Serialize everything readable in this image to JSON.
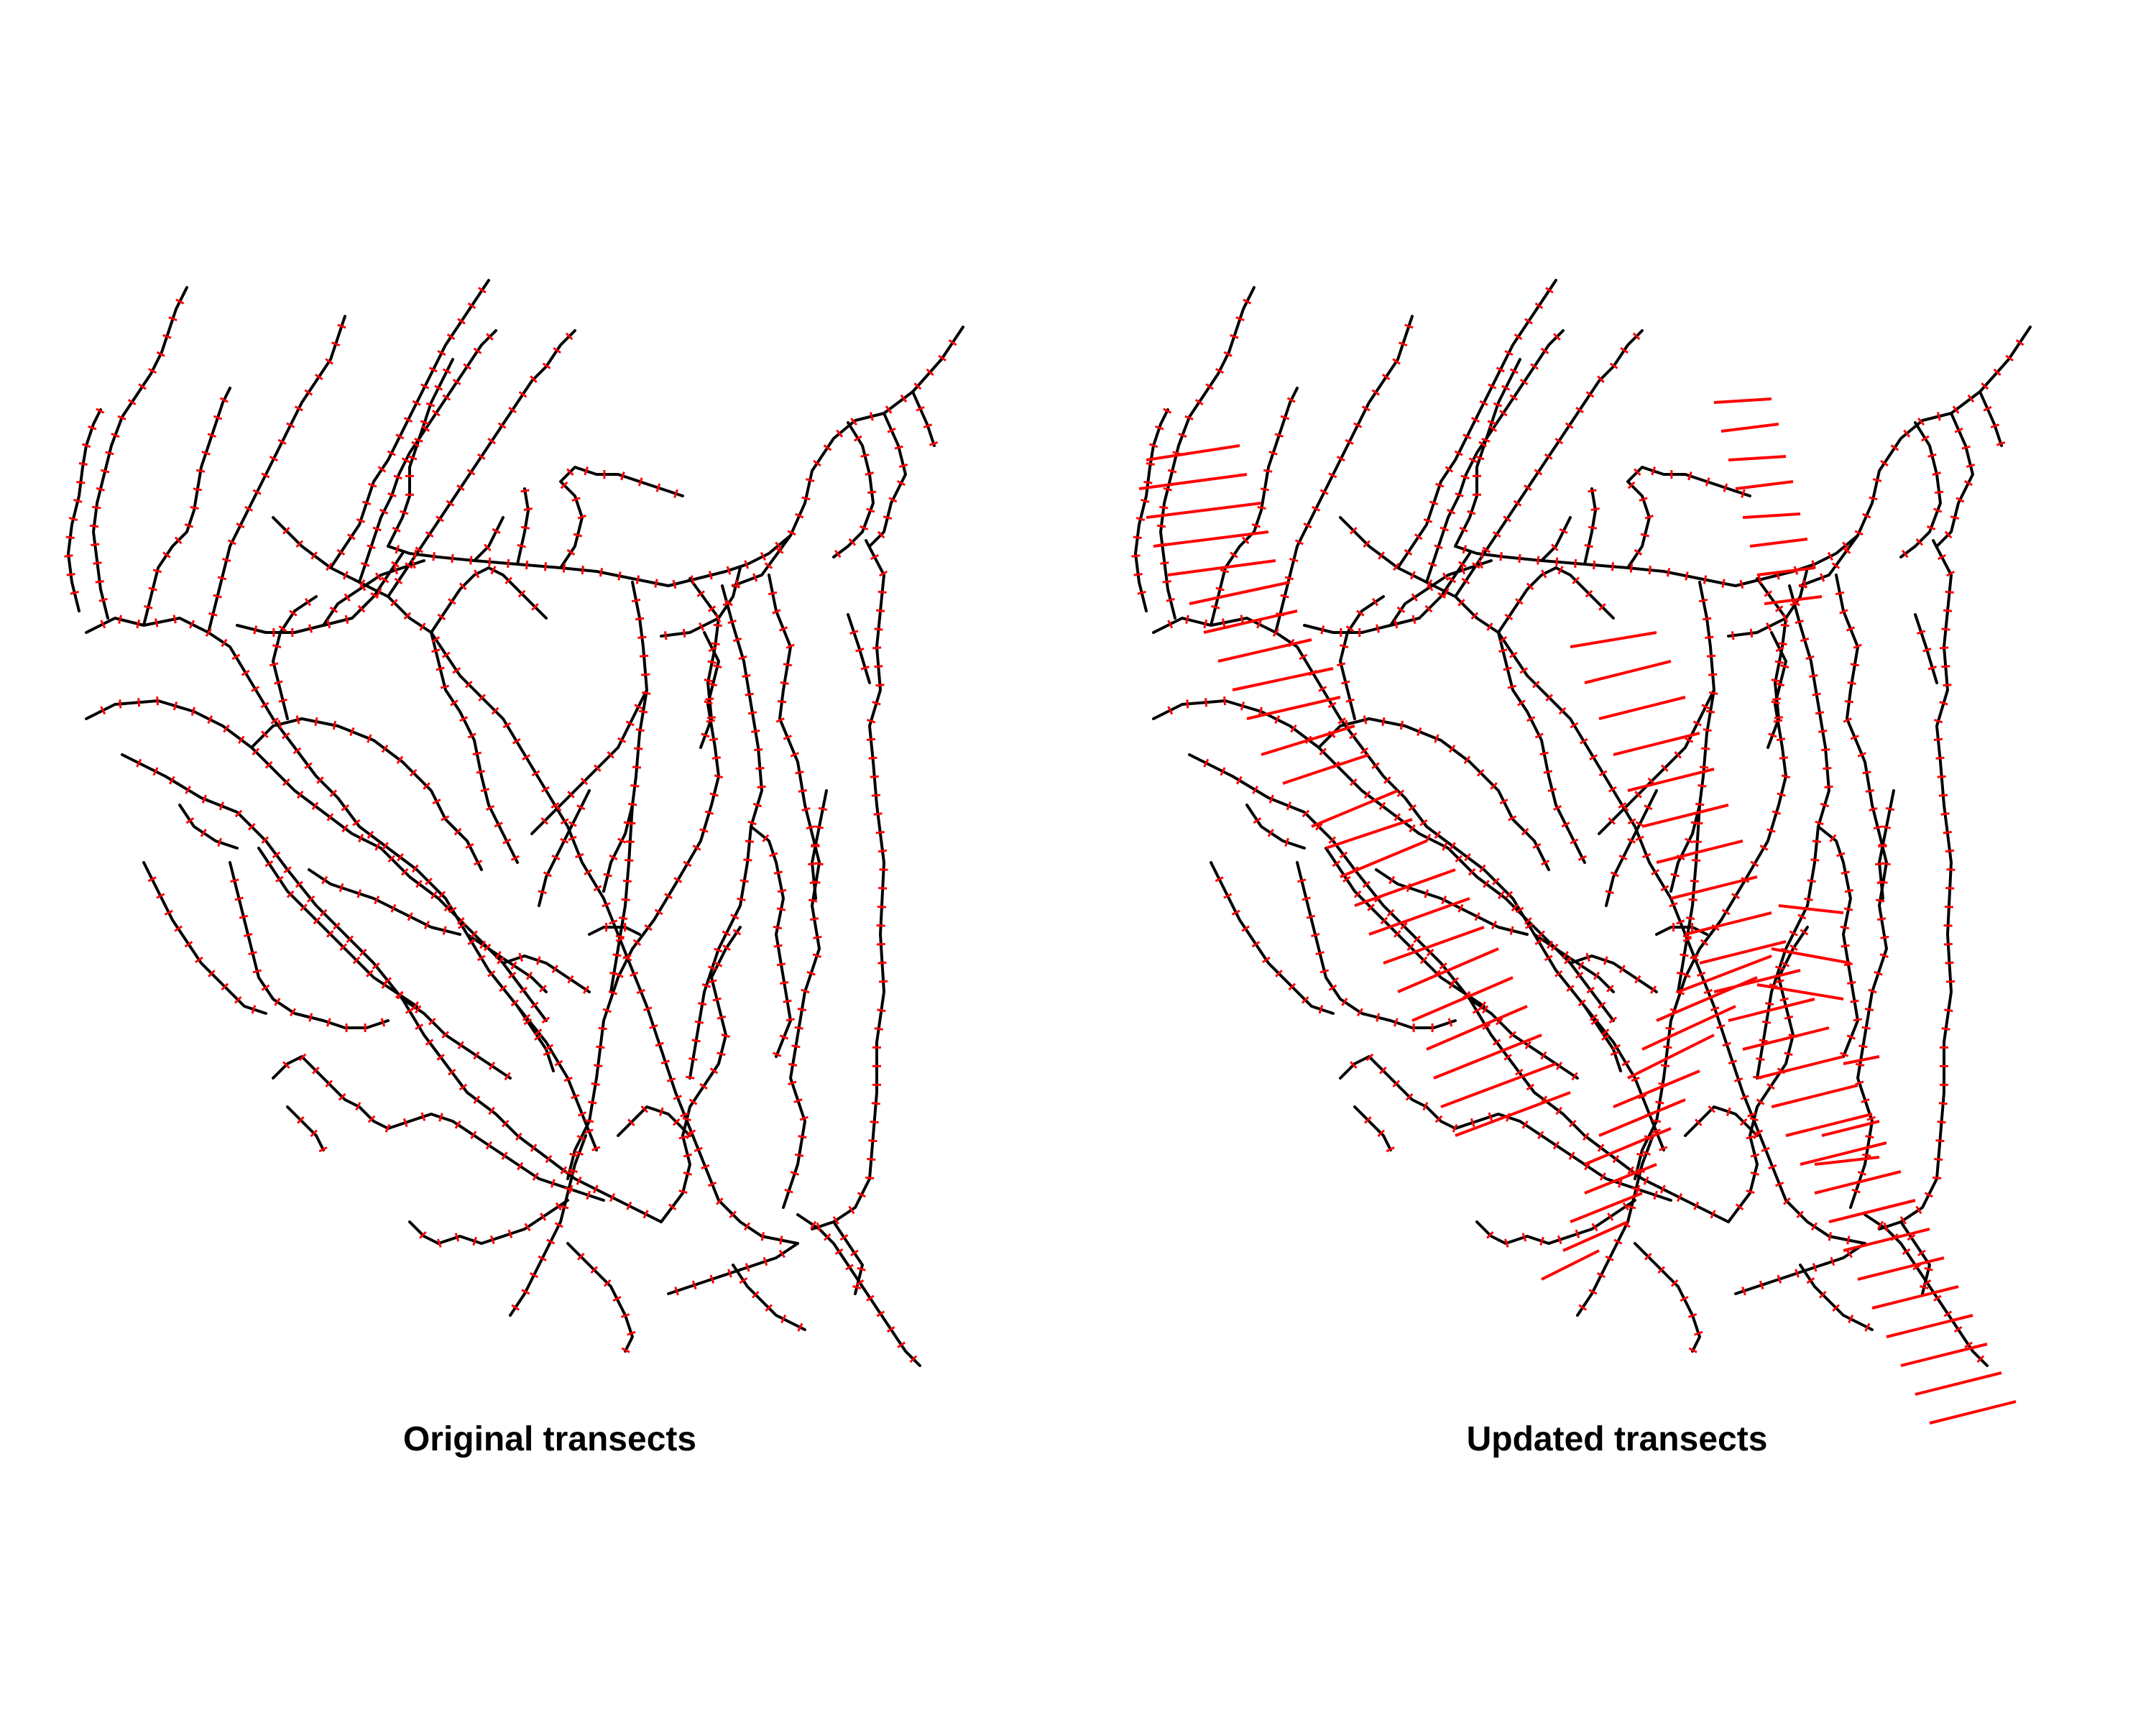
{
  "panels": [
    {
      "id": "original",
      "title": "Original transects"
    },
    {
      "id": "updated",
      "title": "Updated transects"
    }
  ],
  "colors": {
    "network": "#000000",
    "transect": "#ff0000",
    "background": "#ffffff"
  }
}
